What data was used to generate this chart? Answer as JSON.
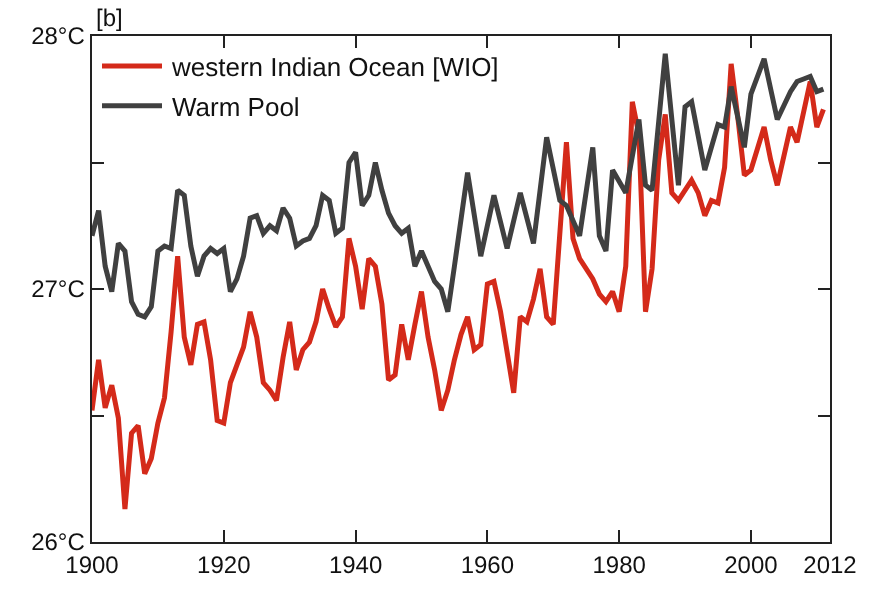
{
  "chart_data": {
    "type": "line",
    "annotations": [
      "[b]"
    ],
    "xlim": [
      1900,
      2012
    ],
    "xticks": [
      1900,
      1920,
      1940,
      1960,
      1980,
      2000,
      2012
    ],
    "ylim": [
      26,
      28
    ],
    "yticks": [
      {
        "value": 26,
        "label": "26°C"
      },
      {
        "value": 26.5,
        "label": null
      },
      {
        "value": 27,
        "label": "27°C"
      },
      {
        "value": 27.5,
        "label": null
      },
      {
        "value": 28,
        "label": "28°C"
      }
    ],
    "grid": false,
    "legend": "top left",
    "line_style": "solid",
    "marker": "none",
    "series": [
      {
        "name": "western Indian Ocean [WIO]",
        "color": "#d42a1a",
        "x": [
          1900,
          1901,
          1902,
          1903,
          1904,
          1905,
          1906,
          1907,
          1908,
          1909,
          1910,
          1911,
          1912,
          1913,
          1914,
          1915,
          1916,
          1917,
          1918,
          1919,
          1920,
          1921,
          1922,
          1923,
          1924,
          1925,
          1926,
          1927,
          1928,
          1929,
          1930,
          1931,
          1932,
          1933,
          1934,
          1935,
          1936,
          1937,
          1938,
          1939,
          1940,
          1941,
          1942,
          1943,
          1944,
          1945,
          1946,
          1947,
          1948,
          1949,
          1950,
          1951,
          1952,
          1953,
          1954,
          1955,
          1956,
          1957,
          1958,
          1959,
          1960,
          1961,
          1962,
          1964,
          1965,
          1966,
          1967,
          1968,
          1969,
          1970,
          1972,
          1973,
          1974,
          1976,
          1977,
          1978,
          1979,
          1980,
          1981,
          1982,
          1983,
          1984,
          1985,
          1986,
          1987,
          1988,
          1989,
          1991,
          1992,
          1993,
          1994,
          1995,
          1996,
          1997,
          1998,
          1999,
          2000,
          2002,
          2003,
          2004,
          2006,
          2007,
          2009,
          2010,
          2011
        ],
        "values": [
          26.52,
          26.72,
          26.53,
          26.62,
          26.49,
          26.13,
          26.43,
          26.46,
          26.27,
          26.33,
          26.47,
          26.57,
          26.83,
          27.13,
          26.81,
          26.7,
          26.86,
          26.87,
          26.72,
          26.48,
          26.47,
          26.63,
          26.7,
          26.77,
          26.91,
          26.81,
          26.63,
          26.6,
          26.56,
          26.73,
          26.87,
          26.68,
          26.76,
          26.79,
          26.87,
          27.0,
          26.92,
          26.85,
          26.89,
          27.2,
          27.09,
          26.92,
          27.12,
          27.09,
          26.94,
          26.64,
          26.66,
          26.86,
          26.72,
          26.86,
          26.99,
          26.81,
          26.68,
          26.52,
          26.6,
          26.72,
          26.82,
          26.89,
          26.76,
          26.78,
          27.02,
          27.03,
          26.91,
          26.59,
          26.89,
          26.87,
          26.96,
          27.08,
          26.89,
          26.86,
          27.58,
          27.2,
          27.12,
          27.04,
          26.98,
          26.95,
          26.99,
          26.91,
          27.09,
          27.74,
          27.61,
          26.91,
          27.08,
          27.51,
          27.69,
          27.38,
          27.35,
          27.43,
          27.38,
          27.29,
          27.35,
          27.34,
          27.48,
          27.89,
          27.68,
          27.45,
          27.47,
          27.64,
          27.51,
          27.41,
          27.64,
          27.58,
          27.82,
          27.64,
          27.71
        ]
      },
      {
        "name": "Warm Pool",
        "color": "#404040",
        "x": [
          1900,
          1901,
          1902,
          1903,
          1904,
          1905,
          1906,
          1907,
          1908,
          1909,
          1910,
          1911,
          1912,
          1913,
          1914,
          1915,
          1916,
          1917,
          1918,
          1919,
          1920,
          1921,
          1922,
          1923,
          1924,
          1925,
          1926,
          1927,
          1928,
          1929,
          1930,
          1931,
          1932,
          1933,
          1934,
          1935,
          1936,
          1937,
          1938,
          1939,
          1940,
          1941,
          1942,
          1943,
          1944,
          1945,
          1946,
          1947,
          1948,
          1949,
          1950,
          1951,
          1952,
          1953,
          1954,
          1955,
          1957,
          1959,
          1961,
          1963,
          1965,
          1967,
          1969,
          1971,
          1972,
          1974,
          1976,
          1977,
          1978,
          1979,
          1981,
          1983,
          1984,
          1985,
          1987,
          1989,
          1990,
          1991,
          1993,
          1995,
          1996,
          1997,
          1999,
          2000,
          2002,
          2004,
          2006,
          2007,
          2008,
          2009,
          2010,
          2011
        ],
        "values": [
          27.21,
          27.31,
          27.09,
          26.99,
          27.18,
          27.15,
          26.95,
          26.9,
          26.89,
          26.93,
          27.15,
          27.17,
          27.16,
          27.39,
          27.37,
          27.17,
          27.05,
          27.13,
          27.16,
          27.14,
          27.16,
          26.99,
          27.04,
          27.13,
          27.28,
          27.29,
          27.22,
          27.25,
          27.23,
          27.32,
          27.28,
          27.17,
          27.19,
          27.2,
          27.25,
          27.37,
          27.35,
          27.22,
          27.24,
          27.5,
          27.54,
          27.33,
          27.37,
          27.5,
          27.39,
          27.3,
          27.25,
          27.22,
          27.24,
          27.09,
          27.15,
          27.09,
          27.03,
          27.0,
          26.91,
          27.09,
          27.46,
          27.13,
          27.37,
          27.16,
          27.38,
          27.18,
          27.6,
          27.35,
          27.33,
          27.21,
          27.56,
          27.21,
          27.15,
          27.47,
          27.38,
          27.67,
          27.41,
          27.39,
          27.93,
          27.41,
          27.72,
          27.74,
          27.47,
          27.65,
          27.64,
          27.8,
          27.56,
          27.77,
          27.91,
          27.67,
          27.78,
          27.82,
          27.83,
          27.84,
          27.78,
          27.79
        ]
      }
    ]
  }
}
